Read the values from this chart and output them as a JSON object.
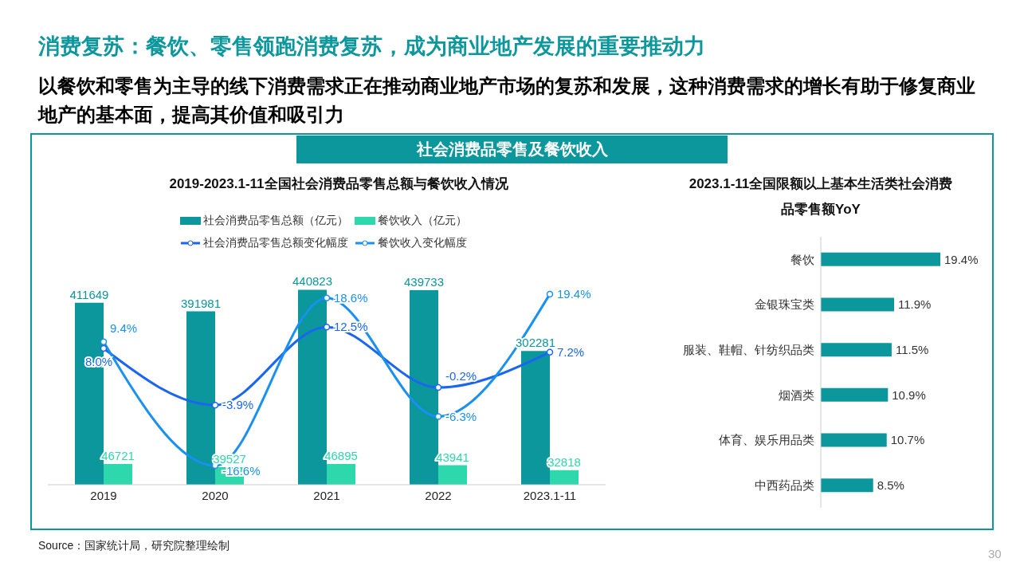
{
  "chart_data": [
    {
      "type": "bar",
      "title": "2019-2023.1-11全国社会消费品零售总额与餐饮收入情况",
      "annotations": [
        "消费复苏：餐饮、零售领跑消费复苏，成为商业地产发展的重要推动力",
        "以餐饮和零售为主导的线下消费需求正在推动商业地产市场的复苏和发展，这种消费需求的增长有助于修复商业地产的基本面，提高其价值和吸引力",
        "社会消费品零售及餐饮收入",
        "Source：国家统计局，研究院整理绘制",
        "30"
      ],
      "categories": [
        "2019",
        "2020",
        "2021",
        "2022",
        "2023.1-11"
      ],
      "series": [
        {
          "name": "社会消费品零售总额（亿元）",
          "color": "#0b979b",
          "values": [
            411649,
            391981,
            440823,
            439733,
            302281
          ],
          "value_labels": [
            "411649",
            "391981",
            "440823",
            "439733",
            "302281"
          ]
        },
        {
          "name": "餐饮收入（亿元）",
          "color": "#2ed8ad",
          "values": [
            46721,
            39527,
            46895,
            43941,
            32818
          ],
          "value_labels": [
            "46721",
            "39527",
            "46895",
            "43941",
            "32818"
          ]
        },
        {
          "name": "社会消费品零售总额变化幅度",
          "type": "line",
          "axis": "y2",
          "color": "#1a66f0",
          "values": [
            8.0,
            -3.9,
            12.5,
            -0.2,
            7.2
          ],
          "value_labels": [
            "8.0%",
            "-3.9%",
            "12.5%",
            "-0.2%",
            "7.2%"
          ]
        },
        {
          "name": "餐饮收入变化幅度",
          "type": "line",
          "axis": "y2",
          "color": "#1a90f0",
          "values": [
            9.4,
            -16.6,
            18.6,
            -6.3,
            19.4
          ],
          "value_labels": [
            "9.4%",
            "-16.6%",
            "18.6%",
            "-6.3%",
            "19.4%"
          ]
        }
      ],
      "tick_labels": "x",
      "legend": "top",
      "marker": "circle"
    },
    {
      "type": "bar",
      "orientation": "horizontal",
      "title": "2023.1-11全国限额以上基本生活类社会消费品零售额YoY",
      "categories": [
        "餐饮",
        "金银珠宝类",
        "服装、鞋帽、针纺织品类",
        "烟酒类",
        "体育、娱乐用品类",
        "中西药品类"
      ],
      "values": [
        19.4,
        11.9,
        11.5,
        10.9,
        10.7,
        8.5
      ],
      "color": "#0b979b",
      "value_labels": [
        "19.4%",
        "11.9%",
        "11.5%",
        "10.9%",
        "10.7%",
        "8.5%"
      ],
      "tick_labels": "y"
    }
  ]
}
